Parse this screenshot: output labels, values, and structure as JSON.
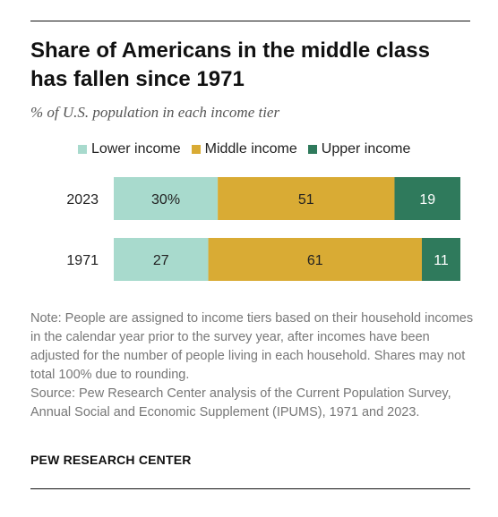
{
  "title": "Share of Americans in the middle class has fallen since 1971",
  "subtitle": "% of U.S. population in each income tier",
  "legend": [
    {
      "label": "Lower income",
      "color": "#a8dacd"
    },
    {
      "label": "Middle income",
      "color": "#d9ab34"
    },
    {
      "label": "Upper income",
      "color": "#2f7a5c"
    }
  ],
  "notes": {
    "note": "Note: People are assigned to income tiers based on their household incomes in the calendar year prior to the survey year, after incomes have been adjusted for the number of people living in each household. Shares may not total 100% due to rounding.",
    "source": "Source: Pew Research Center analysis of the Current Population Survey, Annual Social and Economic Supplement (IPUMS), 1971 and 2023."
  },
  "brand": "PEW RESEARCH CENTER",
  "chart_data": {
    "type": "bar",
    "stacked": true,
    "orientation": "horizontal",
    "categories": [
      "2023",
      "1971"
    ],
    "series": [
      {
        "name": "Lower income",
        "values": [
          30,
          27
        ],
        "labels": [
          "30%",
          "27"
        ],
        "color": "#a8dacd"
      },
      {
        "name": "Middle income",
        "values": [
          51,
          61
        ],
        "labels": [
          "51",
          "61"
        ],
        "color": "#d9ab34"
      },
      {
        "name": "Upper income",
        "values": [
          19,
          11
        ],
        "labels": [
          "19",
          "11"
        ],
        "color": "#2f7a5c"
      }
    ],
    "xlim": [
      0,
      100
    ],
    "grid": false,
    "legend_position": "top"
  }
}
